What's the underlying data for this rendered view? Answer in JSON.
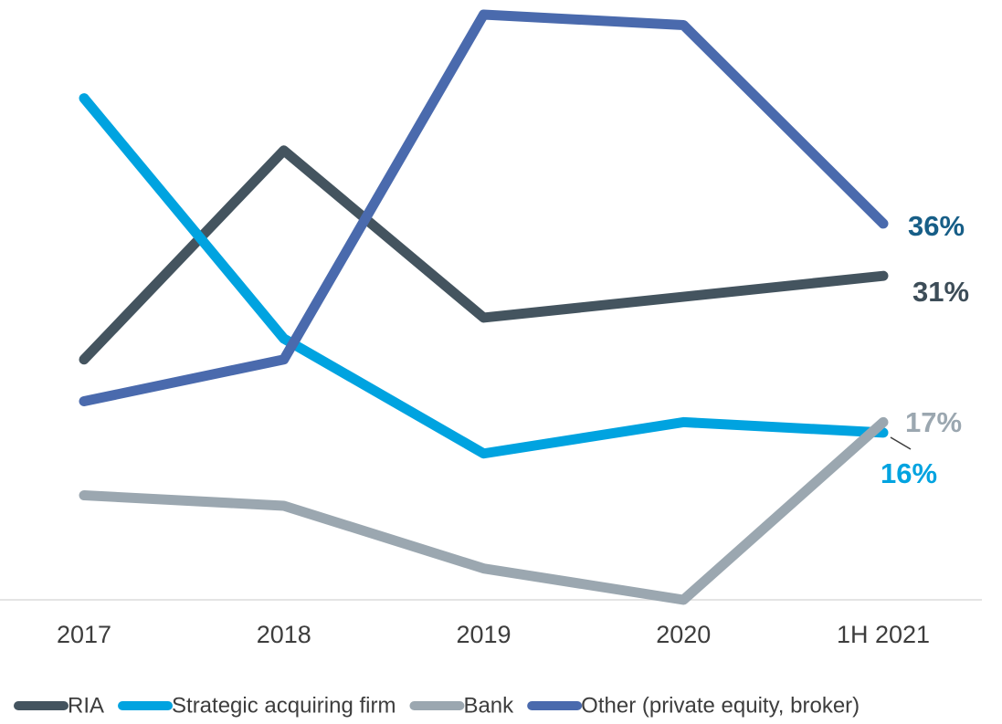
{
  "chart_data": {
    "type": "line",
    "categories": [
      "2017",
      "2018",
      "2019",
      "2020",
      "1H 2021"
    ],
    "ylim": [
      0,
      56
    ],
    "series": [
      {
        "name": "RIA",
        "color": "#44545f",
        "label_color": "#3d4d58",
        "values": [
          23,
          43,
          27,
          29,
          31
        ],
        "value_labels": [
          null,
          null,
          null,
          null,
          "31%"
        ]
      },
      {
        "name": "Strategic acquiring firm",
        "color": "#00a3e0",
        "label_color": "#00a3e0",
        "values": [
          48,
          25,
          14,
          17,
          16
        ],
        "value_labels": [
          null,
          null,
          null,
          null,
          "16%"
        ]
      },
      {
        "name": "Bank",
        "color": "#9ba7b0",
        "label_color": "#9ba7b0",
        "values": [
          10,
          9,
          3,
          0,
          17
        ],
        "value_labels": [
          null,
          null,
          null,
          null,
          "17%"
        ]
      },
      {
        "name": "Other (private equity, broker)",
        "color": "#4a6aad",
        "label_color": "#175e87",
        "values": [
          19,
          23,
          56,
          55,
          36
        ],
        "value_labels": [
          null,
          null,
          null,
          null,
          "36%"
        ]
      }
    ]
  }
}
